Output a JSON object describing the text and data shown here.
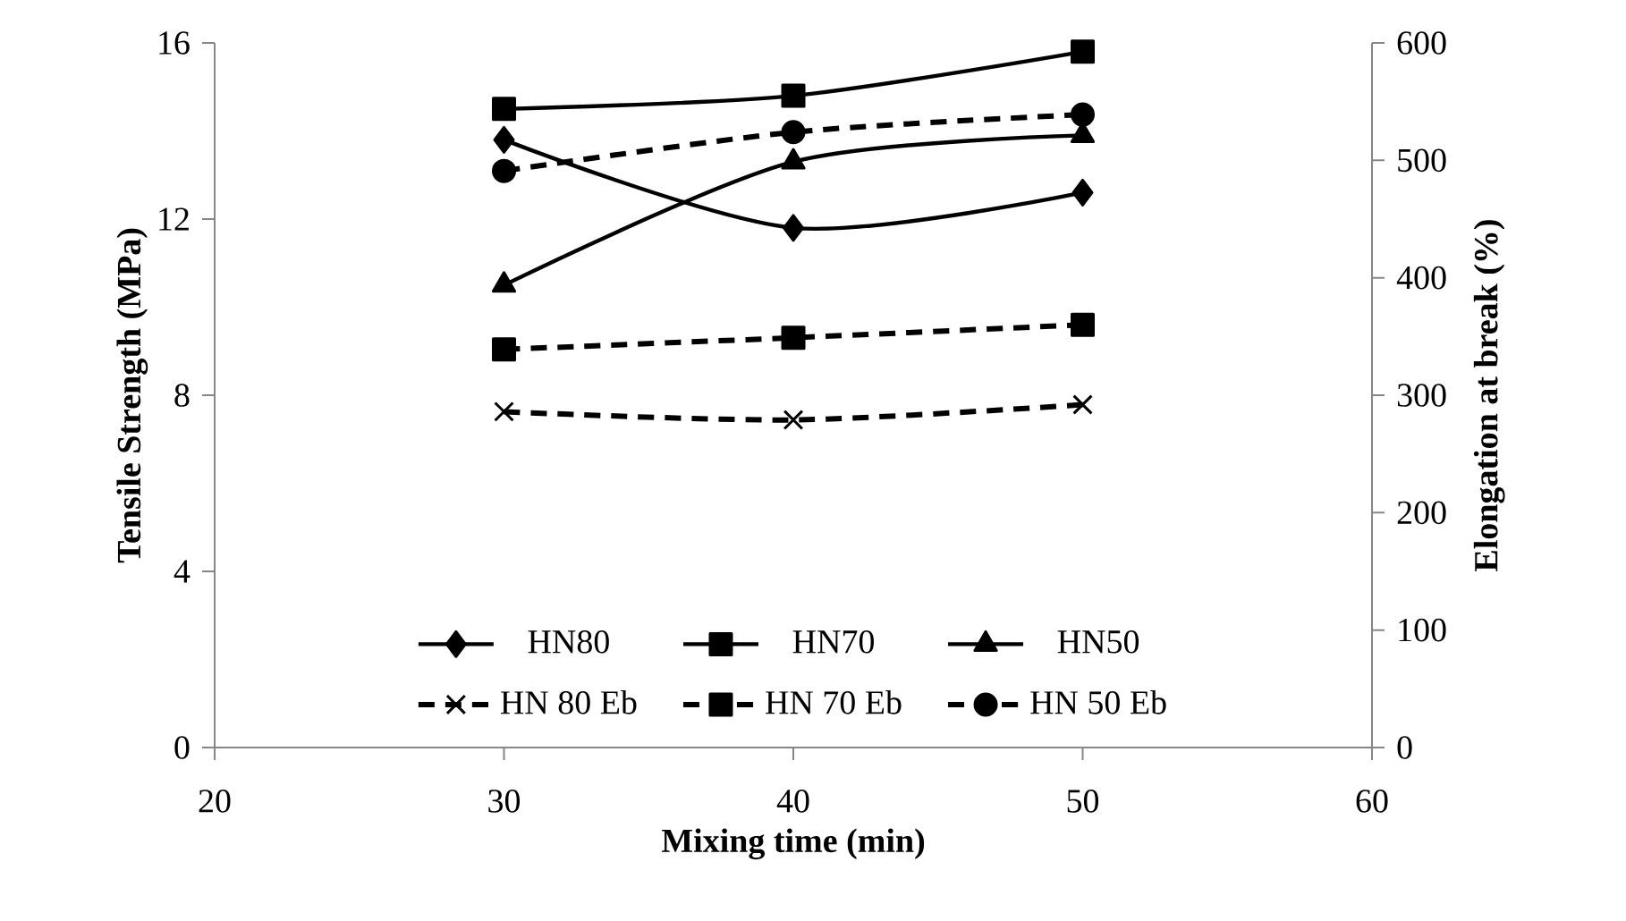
{
  "chart_data": {
    "type": "line",
    "xlabel": "Mixing time (min)",
    "ylabel": "Tensile Strength (MPa)",
    "y2label": "Elongation at break (%)",
    "x": [
      30,
      40,
      50
    ],
    "series": [
      {
        "name": "HN80",
        "color": "#000000",
        "values": [
          13.8,
          11.8,
          12.6
        ],
        "marker": "diamond",
        "line_style": "solid"
      },
      {
        "name": "HN70",
        "color": "#000000",
        "values": [
          14.5,
          14.8,
          15.8
        ],
        "marker": "square",
        "line_style": "solid"
      },
      {
        "name": "HN50",
        "color": "#000000",
        "values": [
          10.5,
          13.3,
          13.9
        ],
        "marker": "triangle",
        "line_style": "solid"
      },
      {
        "name": "HN 80 Eb",
        "color": "#000000",
        "values": [
          286,
          279,
          292
        ],
        "marker": "cross",
        "line_style": "dashed",
        "axis": "y2"
      },
      {
        "name": "HN 70 Eb",
        "color": "#000000",
        "values": [
          339,
          349,
          360
        ],
        "marker": "square",
        "line_style": "dashed",
        "axis": "y2"
      },
      {
        "name": "HN 50 Eb",
        "color": "#000000",
        "values": [
          491,
          524,
          539
        ],
        "marker": "circle",
        "line_style": "dashed",
        "axis": "y2"
      }
    ],
    "xlim": [
      20,
      60
    ],
    "xticks": [
      20,
      30,
      40,
      50,
      60
    ],
    "ylim": [
      0,
      16
    ],
    "yticks": [
      0,
      4,
      8,
      12,
      16
    ],
    "y2lim": [
      0,
      600
    ],
    "y2ticks": [
      0,
      100,
      200,
      300,
      400,
      500,
      600
    ],
    "grid": false,
    "legend": "bottom"
  }
}
